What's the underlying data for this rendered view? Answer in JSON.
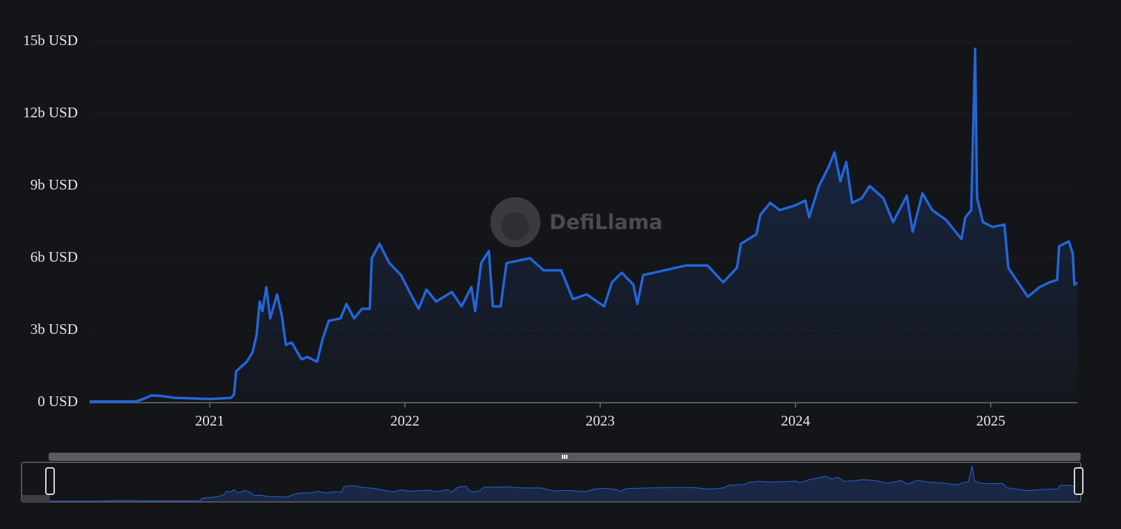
{
  "chart_data": {
    "type": "area",
    "watermark": "DefiLlama",
    "color": "#2266dd",
    "xlim": [
      2020.385,
      2025.443
    ],
    "xticks": [
      2021,
      2022,
      2023,
      2024,
      2025
    ],
    "ylim": [
      0,
      15
    ],
    "yticks": [
      {
        "value": 0,
        "label": "0 USD"
      },
      {
        "value": 3,
        "label": "3b USD"
      },
      {
        "value": 6,
        "label": "6b USD"
      },
      {
        "value": 9,
        "label": "9b USD"
      },
      {
        "value": 12,
        "label": "12b USD"
      },
      {
        "value": 15,
        "label": "15b USD"
      }
    ],
    "grid": true,
    "x": [
      2020.385,
      2020.62,
      2020.66,
      2020.7,
      2020.75,
      2020.82,
      2021.0,
      2021.11,
      2021.125,
      2021.135,
      2021.19,
      2021.22,
      2021.24,
      2021.256,
      2021.27,
      2021.29,
      2021.31,
      2021.345,
      2021.37,
      2021.39,
      2021.42,
      2021.47,
      2021.5,
      2021.55,
      2021.58,
      2021.61,
      2021.67,
      2021.7,
      2021.74,
      2021.78,
      2021.82,
      2021.83,
      2021.87,
      2021.92,
      2021.98,
      2022.03,
      2022.07,
      2022.11,
      2022.16,
      2022.24,
      2022.29,
      2022.34,
      2022.36,
      2022.39,
      2022.43,
      2022.45,
      2022.49,
      2022.52,
      2022.64,
      2022.71,
      2022.8,
      2022.86,
      2022.93,
      2023.02,
      2023.06,
      2023.11,
      2023.17,
      2023.19,
      2023.22,
      2023.33,
      2023.44,
      2023.55,
      2023.63,
      2023.7,
      2023.72,
      2023.8,
      2023.82,
      2023.87,
      2023.92,
      2024.0,
      2024.05,
      2024.07,
      2024.12,
      2024.17,
      2024.2,
      2024.23,
      2024.26,
      2024.29,
      2024.34,
      2024.38,
      2024.45,
      2024.5,
      2024.57,
      2024.6,
      2024.65,
      2024.7,
      2024.77,
      2024.85,
      2024.87,
      2024.9,
      2024.92,
      2024.93,
      2024.96,
      2025.01,
      2025.07,
      2025.09,
      2025.14,
      2025.19,
      2025.25,
      2025.3,
      2025.34,
      2025.35,
      2025.4,
      2025.42,
      2025.428,
      2025.443
    ],
    "values": [
      0.05,
      0.05,
      0.15,
      0.3,
      0.28,
      0.2,
      0.15,
      0.2,
      0.35,
      1.3,
      1.7,
      2.1,
      2.8,
      4.2,
      3.8,
      4.8,
      3.5,
      4.5,
      3.6,
      2.4,
      2.5,
      1.8,
      1.9,
      1.7,
      2.7,
      3.4,
      3.5,
      4.1,
      3.5,
      3.9,
      3.9,
      6.0,
      6.6,
      5.8,
      5.3,
      4.5,
      3.9,
      4.7,
      4.2,
      4.6,
      4.0,
      4.8,
      3.8,
      5.8,
      6.3,
      4.0,
      4.0,
      5.8,
      6.0,
      5.5,
      5.5,
      4.3,
      4.5,
      4.0,
      5.0,
      5.4,
      4.9,
      4.1,
      5.3,
      5.5,
      5.7,
      5.7,
      5.0,
      5.6,
      6.6,
      7.0,
      7.8,
      8.3,
      8.0,
      8.2,
      8.4,
      7.7,
      9.0,
      9.8,
      10.4,
      9.2,
      10.0,
      8.3,
      8.5,
      9.0,
      8.5,
      7.5,
      8.6,
      7.1,
      8.7,
      8.0,
      7.6,
      6.8,
      7.7,
      8.0,
      14.7,
      8.5,
      7.5,
      7.3,
      7.4,
      5.6,
      5.0,
      4.4,
      4.8,
      5.0,
      5.1,
      6.5,
      6.7,
      6.2,
      4.9,
      5.0
    ]
  }
}
